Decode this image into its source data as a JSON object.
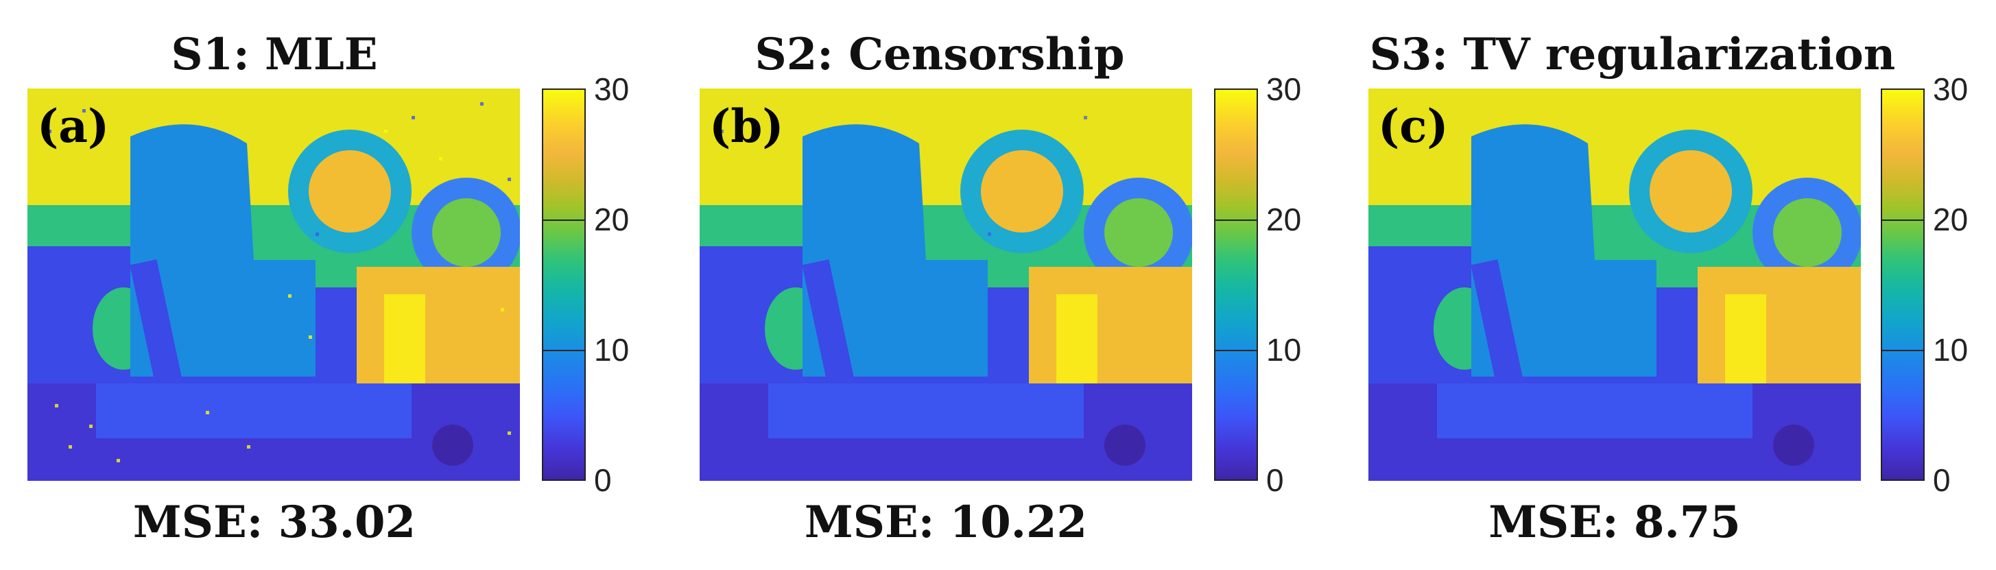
{
  "panels": [
    {
      "title": "S1: MLE",
      "tag": "(a)",
      "metric": "MSE: 33.02"
    },
    {
      "title": "S2: Censorship",
      "tag": "(b)",
      "metric": "MSE: 10.22"
    },
    {
      "title": "S3: TV regularization",
      "tag": "(c)",
      "metric": "MSE: 8.75"
    }
  ],
  "colorbar": {
    "ticks": [
      "30",
      "20",
      "10",
      "0"
    ],
    "range": [
      0,
      30
    ],
    "colormap": "parula",
    "colors": [
      "#3e26a8",
      "#2a72f5",
      "#16b7a5",
      "#66c84a",
      "#f3b73c",
      "#f9fb0e"
    ]
  }
}
